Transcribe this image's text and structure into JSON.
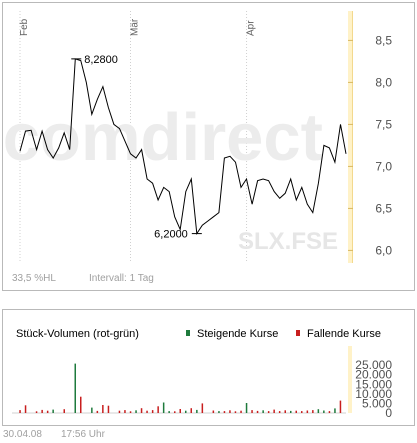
{
  "price_chart": {
    "watermark": "comdirect",
    "symbol": "SLX.FSE",
    "hl_label": "33,5 %HL",
    "interval_label": "Intervall: 1 Tag",
    "month_labels": [
      {
        "label": "Feb",
        "x": 0
      },
      {
        "label": "Mär",
        "x": 20
      },
      {
        "label": "Apr",
        "x": 41
      }
    ],
    "colors": {
      "line": "#000000",
      "axis_band": "#fff2c8",
      "grid": "#d0d0d0",
      "watermark": "#ececec"
    }
  },
  "volume_chart": {
    "title": "Stück-Volumen (rot-grün)",
    "legend": [
      {
        "label": "Steigende Kurse",
        "color": "#1e7a3c"
      },
      {
        "label": "Fallende Kurse",
        "color": "#c81e1e"
      }
    ]
  },
  "footer": {
    "date": "30.04.08",
    "time": "17:56 Uhr"
  },
  "chart_data": [
    {
      "type": "line",
      "title": "",
      "xlabel": "",
      "ylabel": "",
      "ylim": [
        5.85,
        8.85
      ],
      "yticks": [
        "8,5",
        "8,0",
        "7,5",
        "7,0",
        "6,5",
        "6,0"
      ],
      "ytick_values": [
        8.5,
        8.0,
        7.5,
        7.0,
        6.5,
        6.0
      ],
      "xlim": [
        0,
        59
      ],
      "grid": true,
      "annotations": [
        {
          "text": "8,2800",
          "x": 10,
          "y": 8.28
        },
        {
          "text": "6,2000",
          "x": 32,
          "y": 6.2
        }
      ],
      "series": [
        {
          "x": [
            0,
            1,
            2,
            3,
            4,
            5,
            6,
            7,
            8,
            9,
            10,
            11,
            12,
            13,
            14,
            15,
            16,
            17,
            18,
            19,
            20,
            21,
            22,
            23,
            24,
            25,
            26,
            27,
            28,
            29,
            30,
            31,
            32,
            33,
            34,
            35,
            36,
            37,
            38,
            39,
            40,
            41,
            42,
            43,
            44,
            45,
            46,
            47,
            48,
            49,
            50,
            51,
            52,
            53,
            54,
            55,
            56,
            57,
            58,
            59
          ],
          "y": [
            7.18,
            7.42,
            7.43,
            7.2,
            7.42,
            7.2,
            7.1,
            7.22,
            7.4,
            7.2,
            8.28,
            8.26,
            8.0,
            7.62,
            7.8,
            7.95,
            7.7,
            7.5,
            7.45,
            7.3,
            7.15,
            7.1,
            7.2,
            6.85,
            6.8,
            6.6,
            6.75,
            6.7,
            6.4,
            6.25,
            6.7,
            6.85,
            6.2,
            6.3,
            6.35,
            6.4,
            6.45,
            7.1,
            7.12,
            7.05,
            6.75,
            6.85,
            6.55,
            6.83,
            6.85,
            6.83,
            6.7,
            6.62,
            6.68,
            6.85,
            6.6,
            6.75,
            6.55,
            6.45,
            6.8,
            7.25,
            7.22,
            7.05,
            7.5,
            7.15
          ]
        }
      ]
    },
    {
      "type": "bar",
      "title": "Stück-Volumen (rot-grün)",
      "ylim": [
        0,
        35000
      ],
      "yticks": [
        "25.000",
        "20.000",
        "15.000",
        "10.000",
        "5.000",
        "0"
      ],
      "ytick_values": [
        25000,
        20000,
        15000,
        10000,
        5000,
        0
      ],
      "series": [
        {
          "name": "Steigende Kurse",
          "x": [
            6,
            10,
            13,
            21,
            26,
            27,
            30,
            32,
            36,
            41,
            44,
            49,
            54,
            55,
            57
          ],
          "values": [
            1800,
            25800,
            2800,
            1400,
            5500,
            1000,
            1200,
            1600,
            1000,
            5200,
            1400,
            1100,
            2000,
            1300,
            2400
          ]
        },
        {
          "name": "Fallende Kurse",
          "x": [
            0,
            1,
            3,
            4,
            5,
            8,
            11,
            14,
            15,
            16,
            18,
            19,
            20,
            22,
            23,
            24,
            25,
            28,
            29,
            31,
            33,
            35,
            37,
            38,
            39,
            40,
            42,
            43,
            45,
            46,
            47,
            48,
            50,
            51,
            52,
            53,
            56,
            58
          ],
          "values": [
            1500,
            4000,
            900,
            1600,
            1200,
            2000,
            8500,
            1100,
            4200,
            3800,
            1200,
            1500,
            900,
            2500,
            1200,
            1500,
            3500,
            900,
            2100,
            2500,
            5000,
            1300,
            1000,
            1400,
            900,
            1200,
            1500,
            1100,
            1000,
            1800,
            1000,
            1400,
            1200,
            1000,
            1300,
            1500,
            1000,
            6500
          ]
        }
      ]
    }
  ]
}
